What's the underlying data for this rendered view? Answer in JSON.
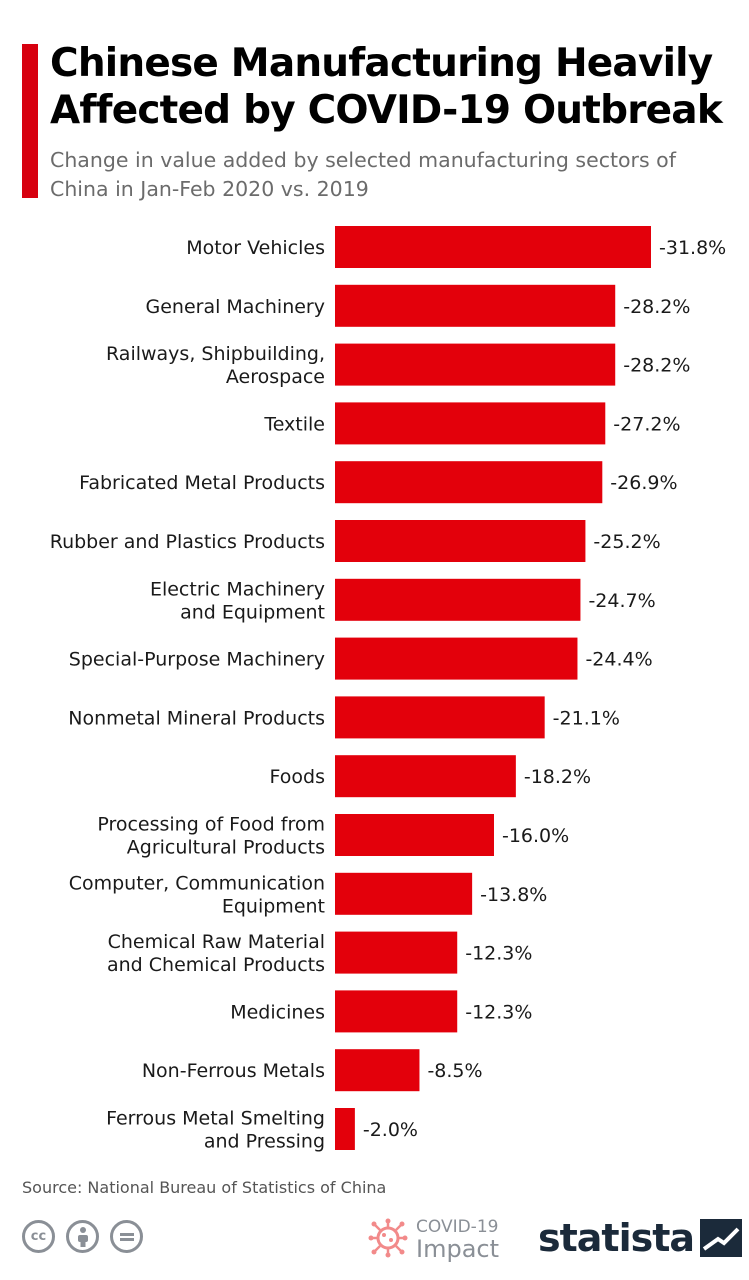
{
  "title": "Chinese Manufacturing Heavily Affected by COVID-19 Outbreak",
  "subtitle": "Change in value added by selected manufacturing sectors of China in Jan-Feb 2020 vs. 2019",
  "source": "Source: National Bureau of Statistics of China",
  "colors": {
    "accent": "#d7000f",
    "bar": "#e3000b",
    "brand_dark": "#1b2a3a",
    "icon_grey": "#8a8f96"
  },
  "footer": {
    "license_icons": [
      "cc-icon",
      "attribution-icon",
      "no-derivatives-icon"
    ],
    "cc_label": "cc",
    "covid_line1": "COVID-19",
    "covid_line2": "Impact",
    "brand": "statista"
  },
  "chart_data": {
    "type": "bar",
    "orientation": "horizontal",
    "value_suffix": "%",
    "categories": [
      [
        "Motor Vehicles"
      ],
      [
        "General Machinery"
      ],
      [
        "Railways, Shipbuilding,",
        "Aerospace"
      ],
      [
        "Textile"
      ],
      [
        "Fabricated Metal Products"
      ],
      [
        "Rubber and Plastics Products"
      ],
      [
        "Electric Machinery",
        "and Equipment"
      ],
      [
        "Special-Purpose Machinery"
      ],
      [
        "Nonmetal Mineral Products"
      ],
      [
        "Foods"
      ],
      [
        "Processing of Food from",
        "Agricultural Products"
      ],
      [
        "Computer, Communication",
        "Equipment"
      ],
      [
        "Chemical Raw Material",
        "and Chemical Products"
      ],
      [
        "Medicines"
      ],
      [
        "Non-Ferrous Metals"
      ],
      [
        "Ferrous Metal Smelting",
        "and Pressing"
      ]
    ],
    "values": [
      -31.8,
      -28.2,
      -28.2,
      -27.2,
      -26.9,
      -25.2,
      -24.7,
      -24.4,
      -21.1,
      -18.2,
      -16.0,
      -13.8,
      -12.3,
      -12.3,
      -8.5,
      -2.0
    ],
    "xlim": [
      0,
      -31.8
    ]
  }
}
